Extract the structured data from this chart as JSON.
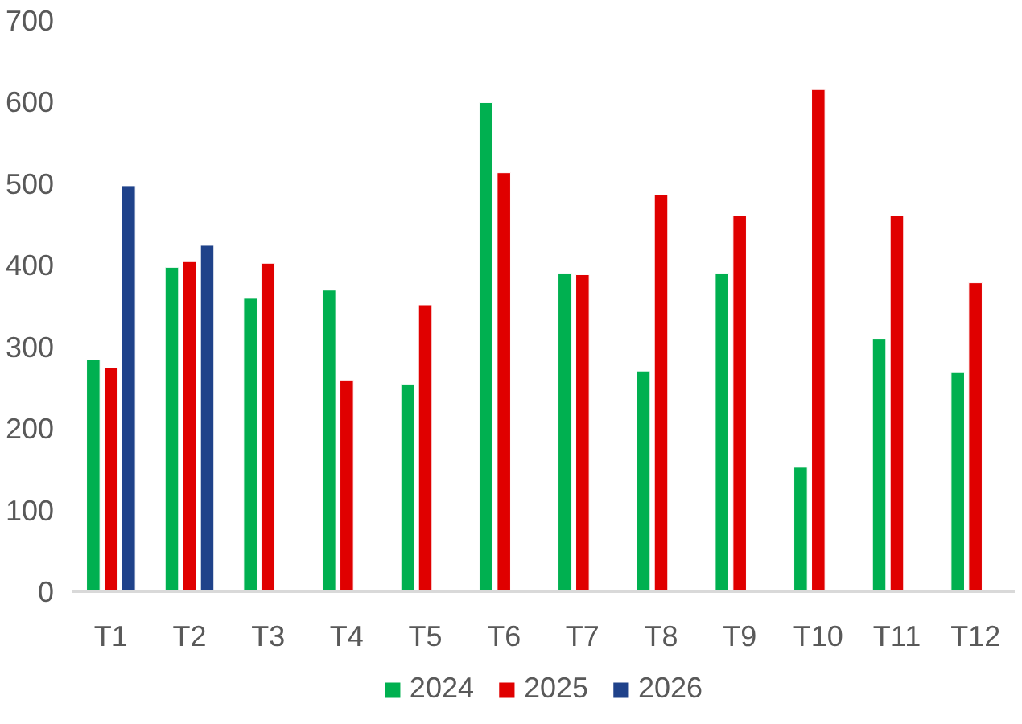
{
  "chart_data": {
    "type": "bar",
    "categories": [
      "T1",
      "T2",
      "T3",
      "T4",
      "T5",
      "T6",
      "T7",
      "T8",
      "T9",
      "T10",
      "T11",
      "T12"
    ],
    "series": [
      {
        "name": "2024",
        "color": "#00b050",
        "values": [
          284,
          397,
          359,
          369,
          254,
          599,
          390,
          270,
          390,
          152,
          309,
          268
        ]
      },
      {
        "name": "2025",
        "color": "#e00000",
        "values": [
          274,
          404,
          402,
          259,
          351,
          513,
          388,
          486,
          460,
          615,
          460,
          378
        ]
      },
      {
        "name": "2026",
        "color": "#1f428a",
        "values": [
          497,
          424,
          null,
          null,
          null,
          null,
          null,
          null,
          null,
          null,
          null,
          null
        ]
      }
    ],
    "ylim": [
      0,
      700
    ],
    "yticks": [
      0,
      100,
      200,
      300,
      400,
      500,
      600,
      700
    ],
    "grid": false,
    "legend": "bottom"
  }
}
